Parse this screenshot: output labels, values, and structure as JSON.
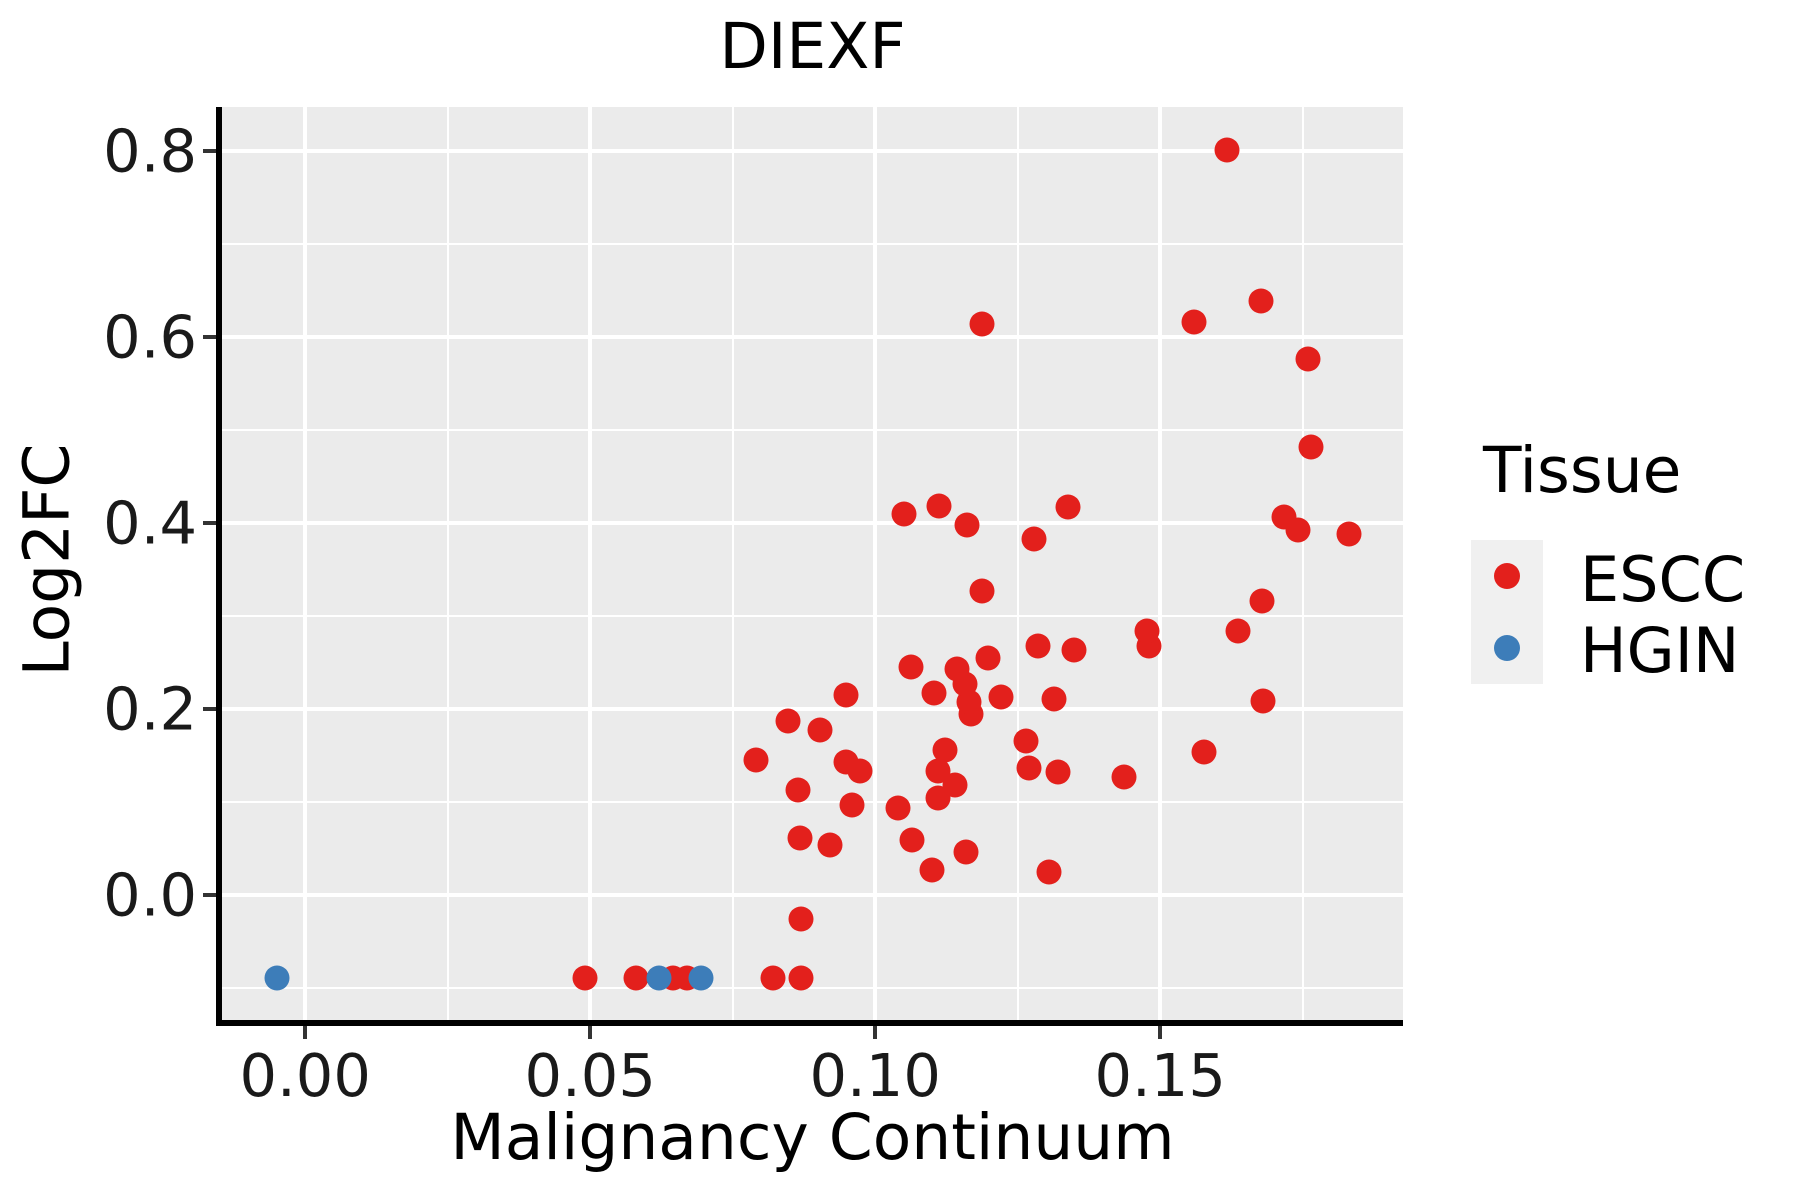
{
  "chart_data": {
    "type": "scatter",
    "title": "DIEXF",
    "xlabel": "Malignancy Continuum",
    "ylabel": "Log2FC",
    "xlim": [
      -0.0146,
      0.1926
    ],
    "ylim": [
      -0.1344,
      0.847
    ],
    "x_ticks": [
      0.0,
      0.05,
      0.1,
      0.15
    ],
    "x_tick_labels": [
      "0.00",
      "0.05",
      "0.10",
      "0.15"
    ],
    "y_ticks": [
      0.0,
      0.2,
      0.4,
      0.6,
      0.8
    ],
    "y_tick_labels": [
      "0.0",
      "0.2",
      "0.4",
      "0.6",
      "0.8"
    ],
    "x_minor_gridlines": [
      0.025,
      0.075,
      0.125,
      0.175
    ],
    "y_minor_gridlines": [
      -0.1,
      0.1,
      0.3,
      0.5,
      0.7
    ],
    "grid": "on",
    "panel_background": "#EBEBEB",
    "gridline_color": "#FFFFFF",
    "legend": {
      "title": "Tissue",
      "position": "right",
      "entries": [
        {
          "label": "ESCC",
          "color": "#E3201C"
        },
        {
          "label": "HGIN",
          "color": "#3D7DB9"
        }
      ]
    },
    "series": [
      {
        "name": "ESCC",
        "color": "#E3201C",
        "points": [
          [
            0.049,
            -0.089
          ],
          [
            0.058,
            -0.089
          ],
          [
            0.0645,
            -0.089
          ],
          [
            0.067,
            -0.089
          ],
          [
            0.082,
            -0.089
          ],
          [
            0.087,
            -0.089
          ],
          [
            0.087,
            -0.026
          ],
          [
            0.11,
            0.027
          ],
          [
            0.1305,
            0.025
          ],
          [
            0.116,
            0.046
          ],
          [
            0.092,
            0.054
          ],
          [
            0.1065,
            0.059
          ],
          [
            0.0868,
            0.061
          ],
          [
            0.096,
            0.097
          ],
          [
            0.104,
            0.0935
          ],
          [
            0.0865,
            0.113
          ],
          [
            0.111,
            0.104
          ],
          [
            0.114,
            0.118
          ],
          [
            0.127,
            0.137
          ],
          [
            0.1437,
            0.127
          ],
          [
            0.111,
            0.133
          ],
          [
            0.0974,
            0.133
          ],
          [
            0.132,
            0.132
          ],
          [
            0.0791,
            0.145
          ],
          [
            0.0949,
            0.143
          ],
          [
            0.1123,
            0.156
          ],
          [
            0.1577,
            0.154
          ],
          [
            0.1265,
            0.165
          ],
          [
            0.0847,
            0.187
          ],
          [
            0.0904,
            0.177
          ],
          [
            0.1168,
            0.195
          ],
          [
            0.0949,
            0.215
          ],
          [
            0.1104,
            0.217
          ],
          [
            0.1165,
            0.2075
          ],
          [
            0.122,
            0.213
          ],
          [
            0.1314,
            0.211
          ],
          [
            0.1681,
            0.208
          ],
          [
            0.1063,
            0.245
          ],
          [
            0.1144,
            0.243
          ],
          [
            0.1158,
            0.227
          ],
          [
            0.1198,
            0.255
          ],
          [
            0.1286,
            0.268
          ],
          [
            0.1349,
            0.263
          ],
          [
            0.1481,
            0.268
          ],
          [
            0.1477,
            0.284
          ],
          [
            0.1637,
            0.284
          ],
          [
            0.1188,
            0.327
          ],
          [
            0.1679,
            0.316
          ],
          [
            0.1279,
            0.383
          ],
          [
            0.1832,
            0.388
          ],
          [
            0.1742,
            0.392
          ],
          [
            0.1161,
            0.398
          ],
          [
            0.1051,
            0.409
          ],
          [
            0.1112,
            0.418
          ],
          [
            0.1339,
            0.417
          ],
          [
            0.1718,
            0.406
          ],
          [
            0.1765,
            0.482
          ],
          [
            0.176,
            0.576
          ],
          [
            0.1188,
            0.614
          ],
          [
            0.156,
            0.616
          ],
          [
            0.1677,
            0.638
          ],
          [
            0.1618,
            0.801
          ]
        ]
      },
      {
        "name": "HGIN",
        "color": "#3D7DB9",
        "points": [
          [
            -0.005,
            -0.089
          ],
          [
            0.062,
            -0.089
          ],
          [
            0.0695,
            -0.089
          ]
        ]
      }
    ]
  }
}
